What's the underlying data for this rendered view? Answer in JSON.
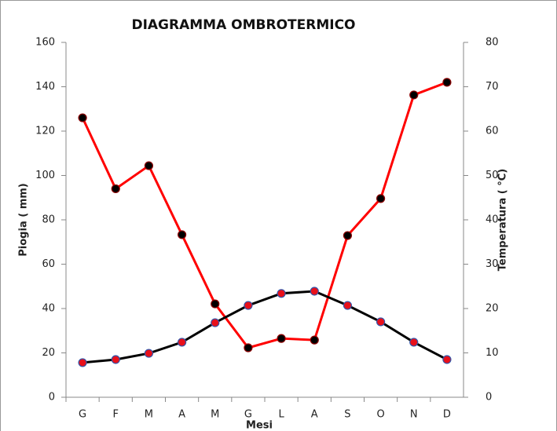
{
  "chart_data": {
    "type": "line",
    "title": "DIAGRAMMA OMBROTERMICO",
    "xlabel": "Mesi",
    "ylabel": "Piogia ( mm)",
    "y2label": "Temperatura  ( °C)",
    "categories": [
      "G",
      "F",
      "M",
      "A",
      "M",
      "G",
      "L",
      "A",
      "S",
      "O",
      "N",
      "D"
    ],
    "series": [
      {
        "color": "#ff0000",
        "marker_color": "#000000",
        "values": [
          126,
          94,
          104.4,
          73.3,
          42.1,
          22.3,
          26.5,
          25.8,
          72.9,
          89.6,
          136.3,
          142
        ]
      },
      {
        "color": "#000000",
        "marker_color": "#e8101a",
        "axis": "y2",
        "values": [
          7.8,
          8.5,
          9.9,
          12.4,
          16.8,
          20.7,
          23.4,
          23.9,
          20.7,
          17,
          12.4,
          8.5
        ]
      }
    ],
    "ylim": [
      0,
      160
    ],
    "yticks": [
      0,
      20,
      40,
      60,
      80,
      100,
      120,
      140,
      160
    ],
    "y2lim": [
      0,
      80
    ],
    "y2ticks": [
      0,
      10,
      20,
      30,
      40,
      50,
      60,
      70,
      80
    ]
  }
}
